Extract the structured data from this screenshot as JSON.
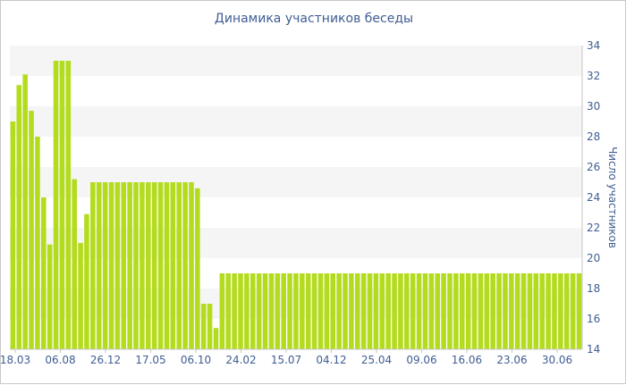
{
  "chart_data": {
    "type": "bar",
    "title": "Динамика участников беседы",
    "xlabel": "",
    "ylabel": "Число участников",
    "ylim": [
      14,
      34
    ],
    "yticks": [
      14,
      16,
      18,
      20,
      22,
      24,
      26,
      28,
      30,
      32,
      34
    ],
    "xticks": [
      "18.03",
      "06.08",
      "26.12",
      "17.05",
      "06.10",
      "24.02",
      "15.07",
      "04.12",
      "25.04",
      "09.06",
      "16.06",
      "23.06",
      "30.06"
    ],
    "grid": "alternating horizontal bands",
    "bar_color": "#b4dc1e",
    "series": [
      {
        "values": [
          29,
          31.4,
          32.1,
          29.7,
          28,
          24,
          20.9,
          33,
          33,
          33,
          25.2,
          21,
          22.9,
          25,
          25,
          25,
          25,
          25,
          25,
          25,
          25,
          25,
          25,
          25,
          25,
          25,
          25,
          25,
          25,
          25,
          24.6,
          17,
          17,
          15.4,
          19,
          19,
          19,
          19,
          19,
          19,
          19,
          19,
          19,
          19,
          19,
          19,
          19,
          19,
          19,
          19,
          19,
          19,
          19,
          19,
          19,
          19,
          19,
          19,
          19,
          19,
          19,
          19,
          19,
          19,
          19,
          19,
          19,
          19,
          19,
          19,
          19,
          19,
          19,
          19,
          19,
          19,
          19,
          19,
          19,
          19,
          19,
          19,
          19,
          19,
          19,
          19,
          19,
          19,
          19,
          19,
          19,
          19,
          19
        ]
      }
    ]
  }
}
